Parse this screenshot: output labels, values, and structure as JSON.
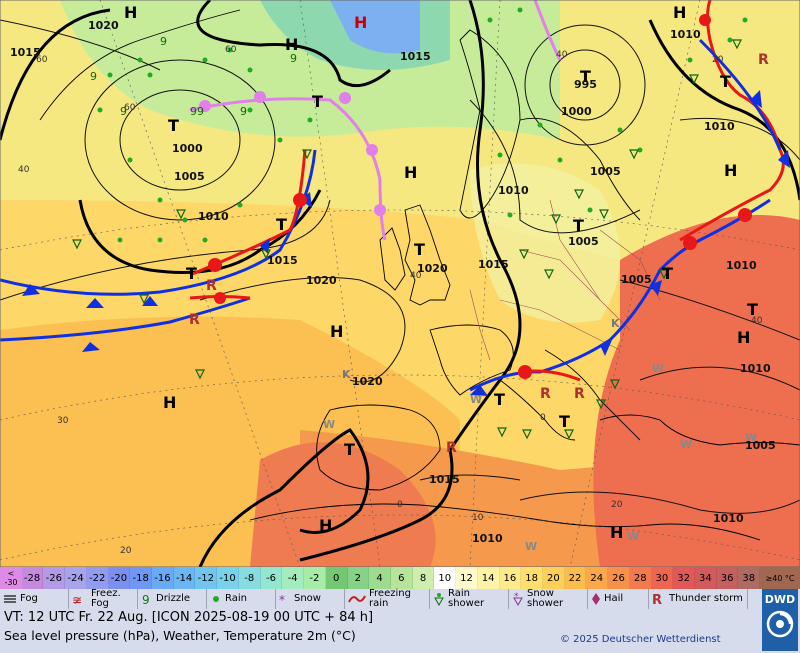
{
  "map": {
    "high_label": "H",
    "low_label": "T",
    "pressure_labels": [
      "1020",
      "1015",
      "1000",
      "1005",
      "1010",
      "1015",
      "1020",
      "1010",
      "995",
      "1000",
      "1005",
      "1005",
      "1015",
      "1020",
      "1015",
      "1005",
      "1010",
      "1010",
      "1020",
      "1015",
      "1010",
      "1010",
      "1010",
      "1005",
      "1010"
    ],
    "temp_labels": [
      "40",
      "60",
      "60",
      "60",
      "40",
      "30",
      "20",
      "0",
      "20",
      "40",
      "40",
      "20",
      "0",
      "10"
    ],
    "weather_letters": [
      "R",
      "R",
      "R",
      "R",
      "R",
      "R",
      "K",
      "K",
      "W",
      "W",
      "W",
      "W",
      "W",
      "W",
      "W"
    ]
  },
  "legend": {
    "scale_values": [
      "-30",
      "-28",
      "-26",
      "-24",
      "-22",
      "-20",
      "-18",
      "-16",
      "-14",
      "-12",
      "-10",
      "-8",
      "-6",
      "-4",
      "-2",
      "0",
      "2",
      "4",
      "6",
      "8",
      "10",
      "12",
      "14",
      "16",
      "18",
      "20",
      "22",
      "24",
      "26",
      "28",
      "30",
      "32",
      "34",
      "36",
      "38"
    ],
    "scale_colors": [
      "#d07ad8",
      "#c58ae0",
      "#b49ae6",
      "#a7a3ec",
      "#8f9cf0",
      "#7b8ff0",
      "#6f98f4",
      "#6aa9f6",
      "#6ab7f4",
      "#6fc5f0",
      "#78d2ea",
      "#86dde0",
      "#93e6d0",
      "#a2ecbe",
      "#a6eca6",
      "#74c874",
      "#86d286",
      "#9ddc8e",
      "#b6e59a",
      "#cfeeae",
      "#ffffff",
      "#fffacc",
      "#fff3a8",
      "#ffea8a",
      "#ffdf6c",
      "#fed05a",
      "#fdbd4c",
      "#fba84a",
      "#f7914a",
      "#f27a4c",
      "#ee6650",
      "#e25858",
      "#d35a5a",
      "#c46060",
      "#b06a64"
    ],
    "scale_low": "< -30",
    "scale_high": "≥40 °C",
    "symbols": [
      {
        "icon": "fog-icon",
        "label": "Fog"
      },
      {
        "icon": "freezing-fog-icon",
        "label": "Freez. Fog"
      },
      {
        "icon": "drizzle-icon",
        "label": "Drizzle"
      },
      {
        "icon": "rain-icon",
        "label": "Rain"
      },
      {
        "icon": "snow-icon",
        "label": "Snow"
      },
      {
        "icon": "freezing-rain-icon",
        "label": "Freezing rain"
      },
      {
        "icon": "rain-shower-icon",
        "label": "Rain shower"
      },
      {
        "icon": "snow-shower-icon",
        "label": "Snow shower"
      },
      {
        "icon": "hail-icon",
        "label": "Hail"
      },
      {
        "icon": "thunderstorm-icon",
        "label": "Thunder storm"
      }
    ],
    "valid_time": "VT: 12 UTC Fr.  22 Aug. [ICON 2025-08-19  00 UTC + 84 h]",
    "description": "Sea level pressure (hPa), Weather, Temperature 2m (°C)",
    "copyright": "© 2025 Deutscher Wetterdienst",
    "logo_text": "DWD"
  },
  "colors": {
    "cold_front": "#1030e0",
    "warm_front": "#e81818",
    "occluded_front": "#e080e8",
    "legend_bg": "#d6dceb"
  }
}
